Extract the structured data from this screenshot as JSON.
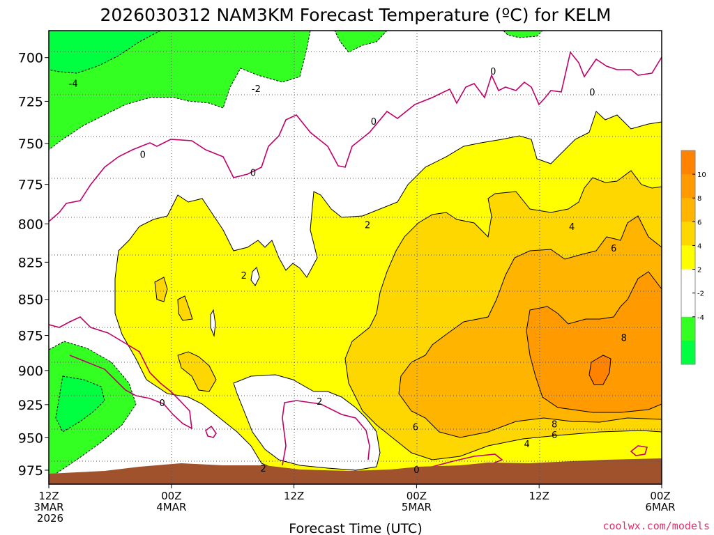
{
  "chart_data": {
    "type": "contour",
    "title": "2026030312 NAM3KM Forecast Temperature (ºC) for KELM",
    "xlabel": "Forecast Time (UTC)",
    "ylabel": "",
    "x_hours": [
      0,
      12,
      24,
      36,
      48,
      60,
      72
    ],
    "x_ticks": [
      {
        "hour": 0,
        "lines": [
          "12Z",
          "3MAR",
          "2026"
        ]
      },
      {
        "hour": 12,
        "lines": [
          "00Z",
          "4MAR"
        ]
      },
      {
        "hour": 24,
        "lines": [
          "12Z"
        ]
      },
      {
        "hour": 36,
        "lines": [
          "00Z",
          "5MAR"
        ]
      },
      {
        "hour": 48,
        "lines": [
          "12Z"
        ]
      },
      {
        "hour": 60,
        "lines": [
          "00Z",
          "6MAR"
        ]
      }
    ],
    "xlim": [
      0,
      60
    ],
    "y_ticks": [
      700,
      725,
      750,
      775,
      800,
      825,
      850,
      875,
      900,
      925,
      950,
      975
    ],
    "ylim": [
      986,
      685
    ],
    "ground_pressure_mb": 978,
    "colorbar": {
      "levels": [
        -6,
        -4,
        -2,
        0,
        2,
        4,
        6,
        8,
        10,
        12
      ],
      "labels": [
        "10",
        "8",
        "6",
        "4",
        "2",
        "-2",
        "-4"
      ],
      "colors": [
        "#00ff40",
        "#33ff22",
        "#ffffff",
        "#ffffff",
        "#ffff00",
        "#ffd700",
        "#ffb400",
        "#ff9b00",
        "#ff8200"
      ]
    },
    "contour_labels": [
      {
        "text": "-4",
        "hour": 2.4,
        "p": 715
      },
      {
        "text": "-2",
        "hour": 20.3,
        "p": 718
      },
      {
        "text": "0",
        "hour": 9.2,
        "p": 757
      },
      {
        "text": "0",
        "hour": 20.0,
        "p": 768
      },
      {
        "text": "0",
        "hour": 31.8,
        "p": 737
      },
      {
        "text": "0",
        "hour": 43.5,
        "p": 708
      },
      {
        "text": "0",
        "hour": 53.2,
        "p": 720
      },
      {
        "text": "0",
        "hour": 11.1,
        "p": 924
      },
      {
        "text": "0",
        "hour": 36.0,
        "p": 975
      },
      {
        "text": "2",
        "hour": 31.2,
        "p": 801
      },
      {
        "text": "2",
        "hour": 19.1,
        "p": 834
      },
      {
        "text": "2",
        "hour": 26.5,
        "p": 923
      },
      {
        "text": "2",
        "hour": 21.0,
        "p": 974
      },
      {
        "text": "4",
        "hour": 51.2,
        "p": 802
      },
      {
        "text": "4",
        "hour": 46.8,
        "p": 955
      },
      {
        "text": "6",
        "hour": 55.3,
        "p": 816
      },
      {
        "text": "6",
        "hour": 35.9,
        "p": 942
      },
      {
        "text": "6",
        "hour": 49.5,
        "p": 948
      },
      {
        "text": "8",
        "hour": 56.3,
        "p": 877
      },
      {
        "text": "8",
        "hour": 49.5,
        "p": 940
      }
    ],
    "credit": "coolwx.com/models"
  }
}
